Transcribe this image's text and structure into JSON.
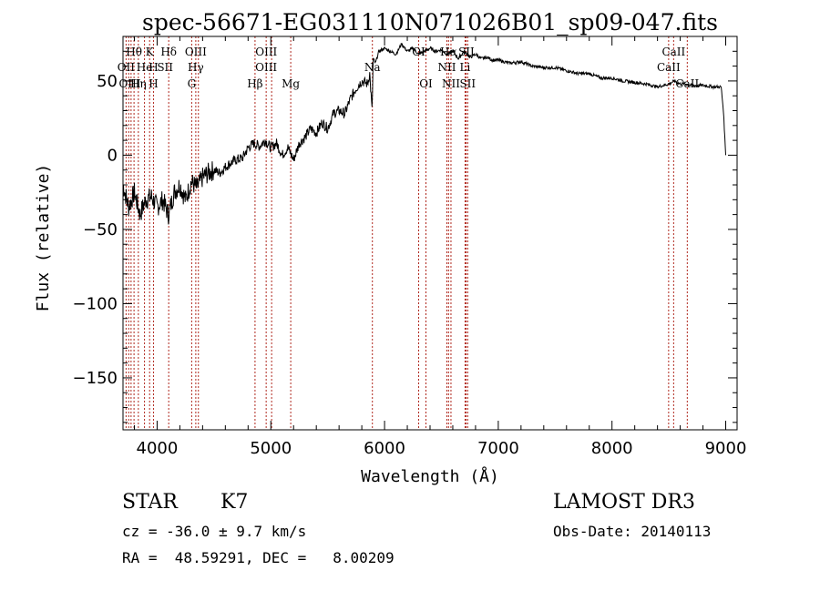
{
  "chart_data": {
    "type": "line",
    "title": "spec-56671-EG031110N071026B01_sp09-047.fits",
    "xlabel": "Wavelength (Å)",
    "ylabel": "Flux (relative)",
    "xlim": [
      3700,
      9100
    ],
    "ylim": [
      -185,
      80
    ],
    "xticks": [
      4000,
      5000,
      6000,
      7000,
      8000,
      9000
    ],
    "yticks": [
      -150,
      -100,
      -50,
      0,
      50
    ],
    "series": [
      {
        "name": "spectrum",
        "x": [
          3700,
          3750,
          3800,
          3850,
          3900,
          3950,
          4000,
          4050,
          4100,
          4150,
          4200,
          4250,
          4300,
          4350,
          4400,
          4450,
          4500,
          4550,
          4600,
          4650,
          4700,
          4750,
          4800,
          4850,
          4900,
          4950,
          5000,
          5050,
          5100,
          5150,
          5200,
          5250,
          5300,
          5350,
          5400,
          5450,
          5500,
          5550,
          5600,
          5650,
          5700,
          5750,
          5800,
          5850,
          5870,
          5890,
          5900,
          5920,
          5950,
          6000,
          6050,
          6100,
          6150,
          6200,
          6250,
          6300,
          6350,
          6400,
          6450,
          6500,
          6550,
          6600,
          6650,
          6700,
          6750,
          6800,
          6850,
          6900,
          6950,
          7000,
          7100,
          7200,
          7300,
          7400,
          7500,
          7600,
          7700,
          7800,
          7900,
          8000,
          8100,
          8200,
          8300,
          8400,
          8500,
          8550,
          8600,
          8650,
          8700,
          8800,
          8900,
          8960,
          8980,
          9000
        ],
        "y": [
          -20,
          -35,
          -25,
          -40,
          -30,
          -28,
          -35,
          -30,
          -40,
          -25,
          -20,
          -30,
          -18,
          -22,
          -15,
          -12,
          -10,
          -12,
          -8,
          -5,
          -3,
          -2,
          5,
          8,
          6,
          10,
          5,
          8,
          0,
          5,
          -3,
          8,
          12,
          18,
          15,
          22,
          18,
          28,
          30,
          28,
          38,
          45,
          50,
          48,
          55,
          30,
          65,
          62,
          70,
          72,
          70,
          68,
          75,
          70,
          72,
          68,
          70,
          72,
          70,
          71,
          68,
          70,
          65,
          70,
          66,
          68,
          65,
          66,
          64,
          64,
          62,
          63,
          60,
          59,
          59,
          57,
          55,
          55,
          52,
          52,
          50,
          49,
          48,
          46,
          48,
          50,
          48,
          48,
          47,
          47,
          46,
          46,
          30,
          0
        ]
      }
    ],
    "line_labels": [
      {
        "text": "Hθ",
        "x": 3797,
        "row": 1
      },
      {
        "text": "K",
        "x": 3934,
        "row": 1
      },
      {
        "text": "Hδ",
        "x": 4102,
        "row": 1
      },
      {
        "text": "OIII",
        "x": 4340,
        "row": 1
      },
      {
        "text": "OIII",
        "x": 4960,
        "row": 1
      },
      {
        "text": "OI",
        "x": 6300,
        "row": 1
      },
      {
        "text": "Hα",
        "x": 6563,
        "row": 1
      },
      {
        "text": "SII",
        "x": 6720,
        "row": 1
      },
      {
        "text": "CaII",
        "x": 8542,
        "row": 1
      },
      {
        "text": "OII",
        "x": 3727,
        "row": 2
      },
      {
        "text": "He",
        "x": 3889,
        "row": 2
      },
      {
        "text": "H",
        "x": 3968,
        "row": 2
      },
      {
        "text": "SII",
        "x": 4070,
        "row": 2
      },
      {
        "text": "Hγ",
        "x": 4340,
        "row": 2
      },
      {
        "text": "OIII",
        "x": 4959,
        "row": 2
      },
      {
        "text": "Na",
        "x": 5893,
        "row": 2
      },
      {
        "text": "NII",
        "x": 6548,
        "row": 2
      },
      {
        "text": "Li",
        "x": 6708,
        "row": 2
      },
      {
        "text": "CaII",
        "x": 8498,
        "row": 2
      },
      {
        "text": "OIII",
        "x": 3760,
        "row": 3
      },
      {
        "text": "Hη",
        "x": 3835,
        "row": 3
      },
      {
        "text": "H",
        "x": 3968,
        "row": 3
      },
      {
        "text": "G",
        "x": 4304,
        "row": 3
      },
      {
        "text": "Hβ",
        "x": 4861,
        "row": 3
      },
      {
        "text": "Mg",
        "x": 5175,
        "row": 3
      },
      {
        "text": "OI",
        "x": 6364,
        "row": 3
      },
      {
        "text": "NII",
        "x": 6584,
        "row": 3
      },
      {
        "text": "SII",
        "x": 6731,
        "row": 3
      },
      {
        "text": "CaII",
        "x": 8662,
        "row": 3
      }
    ],
    "line_markers": [
      3727,
      3750,
      3771,
      3797,
      3835,
      3889,
      3934,
      3968,
      4102,
      4304,
      4340,
      4363,
      4861,
      4959,
      5007,
      5175,
      5893,
      6300,
      6364,
      6548,
      6563,
      6584,
      6708,
      6717,
      6731,
      8498,
      8542,
      8662
    ]
  },
  "info": {
    "class_label": "STAR",
    "subclass": "K7",
    "redshift_text": "cz = -36.0 ± 9.7 km/s",
    "coords_text": "RA =  48.59291, DEC =   8.00209",
    "survey": "LAMOST DR3",
    "obs_date": "Obs-Date: 20140113"
  }
}
